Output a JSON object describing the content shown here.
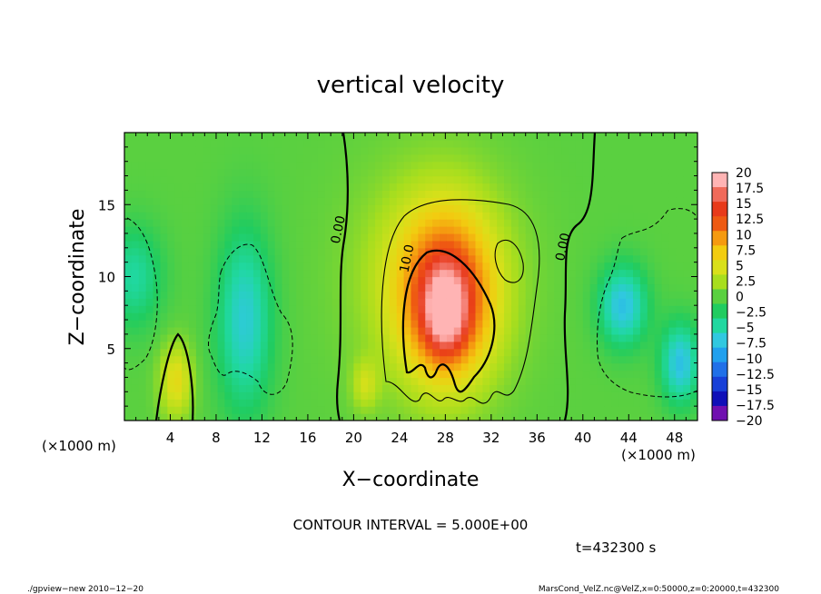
{
  "chart_data": {
    "type": "heatmap",
    "title": "vertical velocity",
    "xlabel": "X−coordinate",
    "ylabel": "Z−coordinate",
    "x_unit_left": "(×1000 m)",
    "x_unit_right": "(×1000 m)",
    "x_range": [
      0,
      50
    ],
    "y_range": [
      0,
      20
    ],
    "x_ticks": [
      "4",
      "8",
      "12",
      "16",
      "20",
      "24",
      "28",
      "32",
      "36",
      "40",
      "44",
      "48"
    ],
    "x_tick_values": [
      4,
      8,
      12,
      16,
      20,
      24,
      28,
      32,
      36,
      40,
      44,
      48
    ],
    "y_ticks": [
      "5",
      "10",
      "15"
    ],
    "y_tick_values": [
      5,
      10,
      15
    ],
    "colorbar": {
      "labels": [
        "20",
        "17.5",
        "15",
        "12.5",
        "10",
        "7.5",
        "5",
        "2.5",
        "0",
        "−2.5",
        "−5",
        "−7.5",
        "−10",
        "−12.5",
        "−15",
        "−17.5",
        "−20"
      ],
      "colors": [
        "#ffb4b4",
        "#f06a5a",
        "#e83a1a",
        "#ee5a12",
        "#f59a10",
        "#f2cc10",
        "#d9e01a",
        "#a8de1e",
        "#5ad040",
        "#20cc60",
        "#20d8a0",
        "#30c8e0",
        "#20a0ee",
        "#2070e8",
        "#1840d8",
        "#1010b8",
        "#7010b0"
      ]
    },
    "contour_labels": [
      "0.00",
      "0.00",
      "10.0"
    ],
    "contour_label_x": [
      19.0,
      38.6,
      25.0
    ],
    "contour_label_y": [
      13.2,
      12.0,
      11.2
    ],
    "contour_interval": "CONTOUR INTERVAL = 5.000E+00",
    "time_label": "t=432300  s",
    "features": [
      {
        "x": 28,
        "z": 7.5,
        "w": 10,
        "sx": 1.3,
        "sz": 2.0
      },
      {
        "x": 28.2,
        "z": 8.5,
        "w": 12,
        "sx": 2.8,
        "sz": 4.0
      },
      {
        "x": 27,
        "z": 10,
        "w": 5,
        "sx": 4.5,
        "sz": 5.0
      },
      {
        "x": 4.5,
        "z": 2.8,
        "w": 6,
        "sx": 1.0,
        "sz": 1.8
      },
      {
        "x": 21,
        "z": 2.5,
        "w": 4,
        "sx": 0.8,
        "sz": 1.2
      },
      {
        "x": 0.8,
        "z": 10,
        "w": -5,
        "sx": 1.8,
        "sz": 2.5
      },
      {
        "x": 10.5,
        "z": 7,
        "w": -7,
        "sx": 1.7,
        "sz": 4.5
      },
      {
        "x": 43.5,
        "z": 8,
        "w": -8,
        "sx": 1.5,
        "sz": 2.0
      },
      {
        "x": 48.5,
        "z": 4,
        "w": -8,
        "sx": 1.2,
        "sz": 2.0
      }
    ]
  },
  "footer": {
    "left": "./gpview−new   2010−12−20",
    "right": "MarsCond_VelZ.nc@VelZ,x=0:50000,z=0:20000,t=432300"
  }
}
